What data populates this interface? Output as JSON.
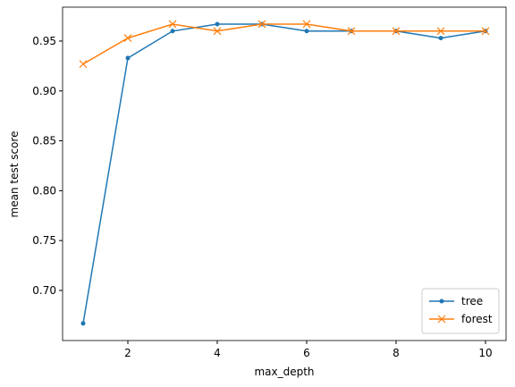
{
  "chart_data": {
    "type": "line",
    "x_label": "max_depth",
    "y_label": "mean test score",
    "x": [
      1,
      2,
      3,
      4,
      5,
      6,
      7,
      8,
      9,
      10
    ],
    "series": [
      {
        "name": "tree",
        "color": "#1f77b4",
        "marker": "dot",
        "values": [
          0.667,
          0.933,
          0.96,
          0.967,
          0.967,
          0.96,
          0.96,
          0.96,
          0.953,
          0.96
        ]
      },
      {
        "name": "forest",
        "color": "#ff7f0e",
        "marker": "x",
        "values": [
          0.927,
          0.953,
          0.967,
          0.96,
          0.967,
          0.967,
          0.96,
          0.96,
          0.96,
          0.96
        ]
      }
    ],
    "xlim": [
      0.54,
      10.46
    ],
    "ylim": [
      0.6498,
      0.984
    ],
    "xticks": [
      2,
      4,
      6,
      8,
      10
    ],
    "yticks": [
      {
        "value": 0.7,
        "label": "0.70"
      },
      0.75,
      {
        "value": 0.8,
        "label": "0.80"
      },
      0.85,
      {
        "value": 0.9,
        "label": "0.90"
      },
      0.95
    ],
    "grid": false,
    "legend": "lower right"
  }
}
